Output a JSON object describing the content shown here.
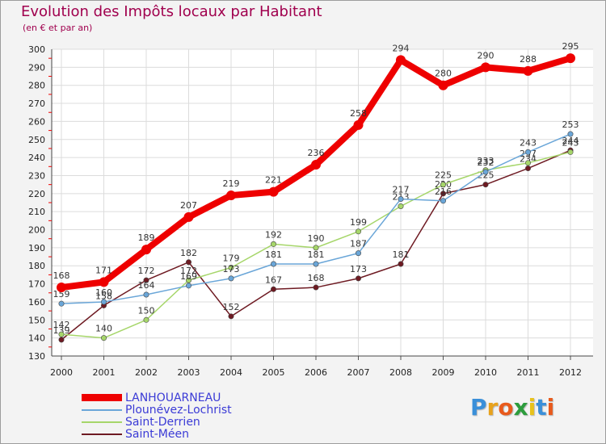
{
  "title": "Evolution des Impôts locaux par Habitant",
  "subtitle": "(en € et par an)",
  "logo": {
    "letters": [
      "P",
      "r",
      "o",
      "x",
      "i",
      "t",
      "i"
    ],
    "colors": [
      "#3a8fd9",
      "#e8a21c",
      "#e85a1c",
      "#2c9c3c",
      "#e8c21c",
      "#3a8fd9",
      "#e85a1c"
    ]
  },
  "chart_data": {
    "type": "line",
    "x": [
      "2000",
      "2001",
      "2002",
      "2003",
      "2004",
      "2005",
      "2006",
      "2007",
      "2008",
      "2009",
      "2010",
      "2011",
      "2012"
    ],
    "ylim": [
      130,
      300
    ],
    "yticks": [
      "300",
      "290",
      "280",
      "270",
      "260",
      "250",
      "240",
      "230",
      "220",
      "210",
      "200",
      "190",
      "180",
      "170",
      "160",
      "150",
      "140",
      "130"
    ],
    "grid": true,
    "series": [
      {
        "name": "LANHOUARNEAU",
        "color": "#ee0000",
        "values": [
          168,
          171,
          189,
          207,
          219,
          221,
          236,
          258,
          294,
          280,
          290,
          288,
          295
        ],
        "labels": [
          "168",
          "171",
          "189",
          "207",
          "219",
          "221",
          "236",
          "258",
          "294",
          "280",
          "290",
          "288",
          "295"
        ]
      },
      {
        "name": "Plounévez-Lochrist",
        "color": "#6aa6d8",
        "values": [
          159,
          160,
          164,
          169,
          173,
          181,
          181,
          187,
          217,
          216,
          232,
          243,
          253
        ],
        "labels": [
          "159",
          "160",
          "164",
          "169",
          "173",
          "181",
          "181",
          "187",
          "217",
          "216",
          "232",
          "243",
          "253"
        ]
      },
      {
        "name": "Saint-Derrien",
        "color": "#a6d66a",
        "values": [
          142,
          140,
          150,
          172,
          179,
          192,
          190,
          199,
          213,
          225,
          233,
          237,
          243
        ],
        "labels": [
          "142",
          "140",
          "150",
          "172",
          "179",
          "192",
          "190",
          "199",
          "213",
          "225",
          "233",
          "237",
          "243"
        ]
      },
      {
        "name": "Saint-Méen",
        "color": "#6e1a22",
        "values": [
          139,
          158,
          172,
          182,
          152,
          167,
          168,
          173,
          181,
          220,
          225,
          234,
          244
        ],
        "labels": [
          "139",
          "158",
          "172",
          "182",
          "152",
          "167",
          "168",
          "173",
          "181",
          "220",
          "225",
          "234",
          "244"
        ]
      }
    ]
  }
}
